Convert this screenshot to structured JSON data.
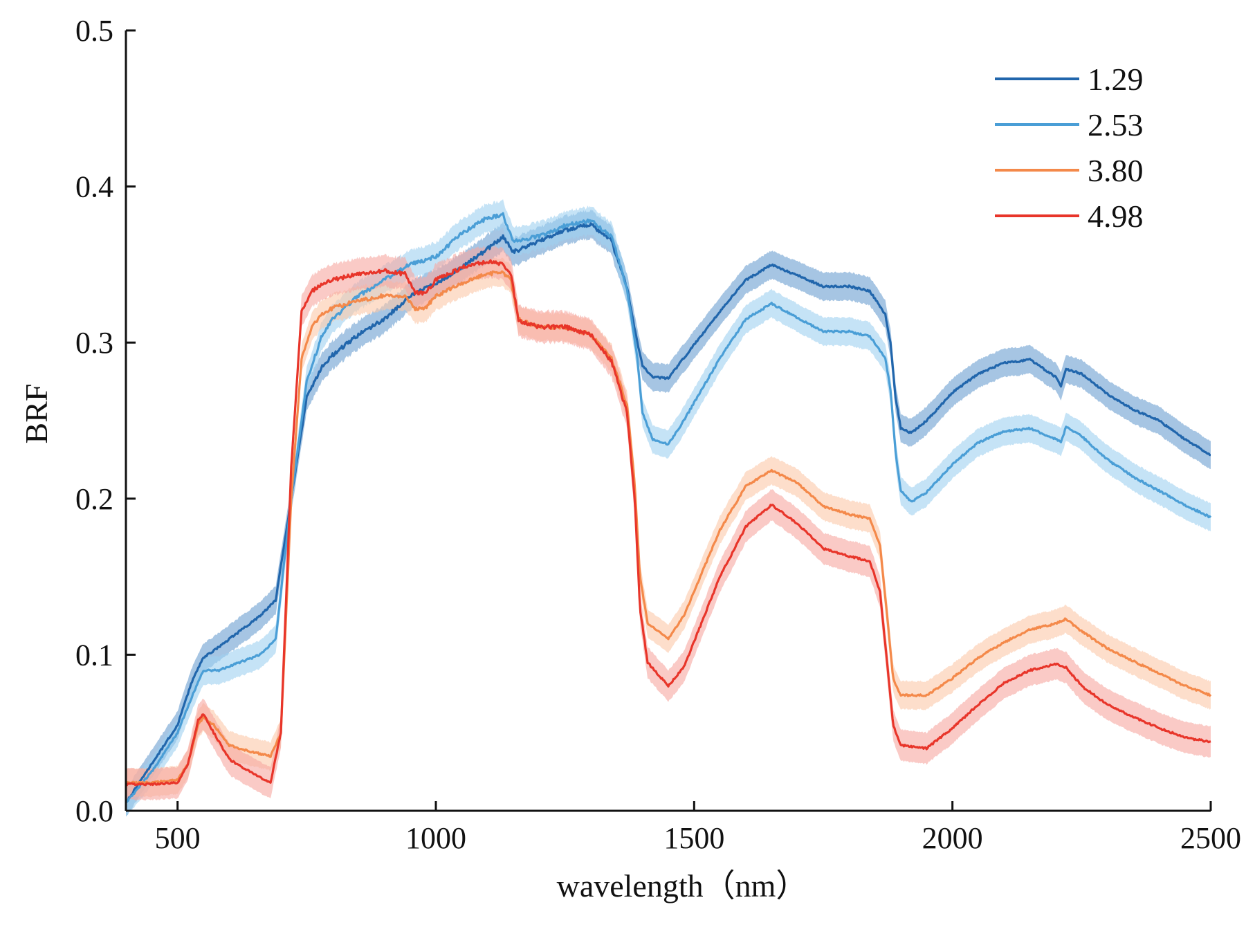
{
  "chart_data": {
    "type": "line",
    "xlabel": "wavelength（nm）",
    "ylabel": "BRF",
    "xlim": [
      400,
      2500
    ],
    "ylim": [
      0.0,
      0.5
    ],
    "xticks": [
      500,
      1000,
      1500,
      2000,
      2500
    ],
    "xtick_labels": [
      "500",
      "1000",
      "1500",
      "2000",
      "2500"
    ],
    "yticks": [
      0.0,
      0.1,
      0.2,
      0.3,
      0.4,
      0.5
    ],
    "ytick_labels": [
      "0.0",
      "0.1",
      "0.2",
      "0.3",
      "0.4",
      "0.5"
    ],
    "grid": false,
    "legend_position": "top-right",
    "series": [
      {
        "name": "1.29",
        "color": "#2166ac",
        "band_color": "#6b9fd0",
        "band_halfwidth": 0.009,
        "x": [
          400,
          450,
          500,
          530,
          550,
          580,
          620,
          660,
          690,
          720,
          750,
          780,
          800,
          850,
          900,
          950,
          1000,
          1050,
          1100,
          1130,
          1150,
          1200,
          1250,
          1300,
          1340,
          1370,
          1390,
          1400,
          1420,
          1450,
          1480,
          1550,
          1600,
          1650,
          1700,
          1750,
          1800,
          1840,
          1870,
          1880,
          1890,
          1900,
          1920,
          1950,
          2000,
          2050,
          2100,
          2150,
          2200,
          2210,
          2220,
          2250,
          2300,
          2350,
          2400,
          2450,
          2500
        ],
        "y": [
          0.005,
          0.03,
          0.055,
          0.085,
          0.098,
          0.105,
          0.115,
          0.125,
          0.135,
          0.2,
          0.265,
          0.285,
          0.292,
          0.305,
          0.315,
          0.33,
          0.338,
          0.348,
          0.36,
          0.368,
          0.358,
          0.365,
          0.372,
          0.376,
          0.365,
          0.335,
          0.3,
          0.285,
          0.278,
          0.277,
          0.29,
          0.32,
          0.34,
          0.35,
          0.343,
          0.336,
          0.336,
          0.333,
          0.318,
          0.3,
          0.265,
          0.245,
          0.242,
          0.25,
          0.268,
          0.28,
          0.287,
          0.289,
          0.278,
          0.272,
          0.283,
          0.28,
          0.267,
          0.257,
          0.25,
          0.238,
          0.228
        ]
      },
      {
        "name": "2.53",
        "color": "#4a9ed6",
        "band_color": "#9fd0f0",
        "band_halfwidth": 0.009,
        "x": [
          400,
          450,
          500,
          530,
          550,
          580,
          620,
          660,
          690,
          720,
          750,
          780,
          800,
          850,
          900,
          950,
          1000,
          1050,
          1100,
          1130,
          1150,
          1200,
          1250,
          1300,
          1340,
          1370,
          1390,
          1400,
          1420,
          1450,
          1480,
          1550,
          1600,
          1650,
          1700,
          1750,
          1800,
          1840,
          1870,
          1880,
          1890,
          1900,
          1920,
          1950,
          2000,
          2050,
          2100,
          2150,
          2200,
          2210,
          2220,
          2250,
          2300,
          2350,
          2400,
          2450,
          2500
        ],
        "y": [
          0.005,
          0.025,
          0.05,
          0.075,
          0.09,
          0.09,
          0.095,
          0.1,
          0.11,
          0.2,
          0.275,
          0.305,
          0.315,
          0.33,
          0.34,
          0.35,
          0.355,
          0.37,
          0.38,
          0.382,
          0.365,
          0.368,
          0.375,
          0.378,
          0.368,
          0.335,
          0.29,
          0.255,
          0.238,
          0.235,
          0.25,
          0.29,
          0.315,
          0.325,
          0.316,
          0.307,
          0.307,
          0.304,
          0.29,
          0.27,
          0.23,
          0.205,
          0.198,
          0.204,
          0.222,
          0.236,
          0.243,
          0.245,
          0.238,
          0.236,
          0.246,
          0.24,
          0.225,
          0.214,
          0.205,
          0.196,
          0.188
        ]
      },
      {
        "name": "3.80",
        "color": "#f4894a",
        "band_color": "#fcc8a8",
        "band_halfwidth": 0.009,
        "x": [
          400,
          450,
          500,
          520,
          540,
          550,
          570,
          600,
          640,
          680,
          700,
          720,
          740,
          760,
          780,
          800,
          850,
          900,
          940,
          960,
          980,
          1000,
          1050,
          1100,
          1130,
          1145,
          1160,
          1200,
          1250,
          1300,
          1340,
          1370,
          1385,
          1395,
          1410,
          1450,
          1480,
          1550,
          1600,
          1650,
          1700,
          1750,
          1800,
          1840,
          1860,
          1875,
          1885,
          1900,
          1950,
          2000,
          2050,
          2100,
          2150,
          2200,
          2220,
          2250,
          2300,
          2350,
          2400,
          2450,
          2500
        ],
        "y": [
          0.018,
          0.018,
          0.02,
          0.03,
          0.055,
          0.06,
          0.055,
          0.042,
          0.038,
          0.035,
          0.05,
          0.2,
          0.29,
          0.31,
          0.318,
          0.322,
          0.327,
          0.33,
          0.33,
          0.322,
          0.322,
          0.33,
          0.338,
          0.344,
          0.345,
          0.34,
          0.315,
          0.31,
          0.31,
          0.305,
          0.29,
          0.26,
          0.21,
          0.15,
          0.12,
          0.11,
          0.125,
          0.18,
          0.208,
          0.218,
          0.21,
          0.195,
          0.19,
          0.187,
          0.17,
          0.12,
          0.085,
          0.074,
          0.074,
          0.085,
          0.098,
          0.108,
          0.116,
          0.12,
          0.123,
          0.115,
          0.104,
          0.096,
          0.088,
          0.08,
          0.074
        ]
      },
      {
        "name": "4.98",
        "color": "#e8352a",
        "band_color": "#f6a6a0",
        "band_halfwidth": 0.01,
        "x": [
          400,
          450,
          500,
          520,
          540,
          550,
          570,
          600,
          640,
          680,
          700,
          720,
          740,
          760,
          780,
          800,
          850,
          900,
          940,
          960,
          980,
          1000,
          1050,
          1100,
          1130,
          1145,
          1160,
          1200,
          1250,
          1300,
          1340,
          1370,
          1385,
          1395,
          1410,
          1450,
          1480,
          1550,
          1600,
          1650,
          1700,
          1750,
          1800,
          1840,
          1860,
          1875,
          1885,
          1900,
          1950,
          2000,
          2050,
          2100,
          2150,
          2200,
          2220,
          2250,
          2300,
          2350,
          2400,
          2450,
          2500
        ],
        "y": [
          0.017,
          0.017,
          0.018,
          0.03,
          0.058,
          0.062,
          0.05,
          0.033,
          0.025,
          0.018,
          0.05,
          0.22,
          0.32,
          0.333,
          0.338,
          0.34,
          0.344,
          0.346,
          0.344,
          0.332,
          0.332,
          0.34,
          0.348,
          0.352,
          0.35,
          0.345,
          0.314,
          0.31,
          0.31,
          0.305,
          0.288,
          0.255,
          0.2,
          0.13,
          0.095,
          0.08,
          0.092,
          0.15,
          0.182,
          0.196,
          0.184,
          0.168,
          0.163,
          0.16,
          0.14,
          0.09,
          0.055,
          0.042,
          0.04,
          0.053,
          0.068,
          0.082,
          0.09,
          0.094,
          0.092,
          0.08,
          0.068,
          0.06,
          0.053,
          0.047,
          0.044
        ]
      }
    ]
  }
}
